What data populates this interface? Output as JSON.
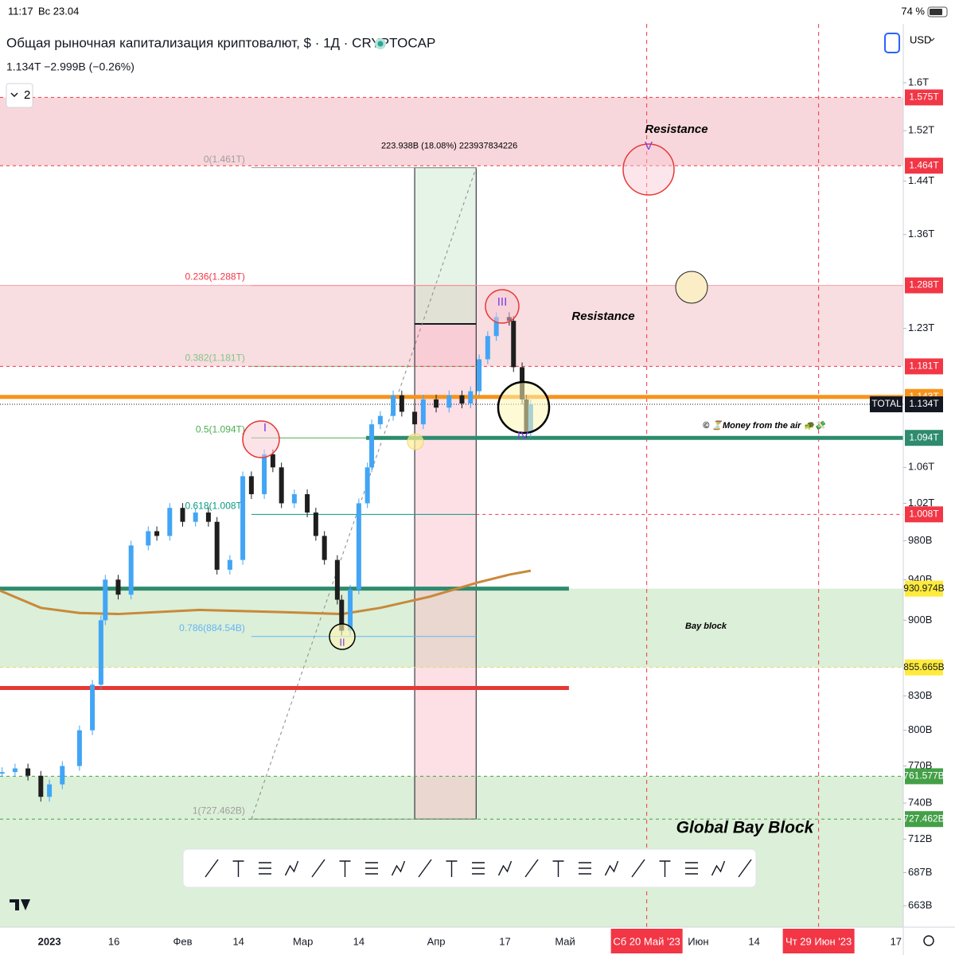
{
  "status_bar": {
    "time": "11:17",
    "date": "Вс 23.04",
    "battery": "74 %"
  },
  "chart_data": {
    "type": "candlestick",
    "title": "Общая рыночная капитализация криптовалют, $ · 1Д · CRYPTOCAP",
    "subtitle": "1.134T  −2.999B (−0.26%)",
    "interval_button": "2",
    "currency": "USD",
    "log_scale": true,
    "up_color": "#42a5f5",
    "down_color": "#1e1e1e",
    "x": [
      -11,
      -8,
      -5,
      -2,
      0,
      3,
      7,
      10,
      12,
      13,
      16,
      19,
      23,
      25,
      28,
      31,
      34,
      37,
      39,
      42,
      45,
      47,
      50,
      52,
      54,
      57,
      60,
      62,
      64,
      67,
      68,
      70,
      72,
      74,
      75,
      77,
      80,
      82,
      85,
      87,
      90,
      93,
      96,
      98,
      100,
      102,
      104,
      107,
      108,
      110,
      111,
      112
    ],
    "close": [
      765,
      768,
      762,
      745,
      755,
      770,
      800,
      840,
      900,
      940,
      925,
      975,
      990,
      985,
      1015,
      1000,
      1010,
      1000,
      950,
      960,
      1050,
      1030,
      1075,
      1060,
      1020,
      1030,
      1010,
      985,
      960,
      920,
      890,
      930,
      1020,
      1060,
      1110,
      1120,
      1145,
      1125,
      1110,
      1140,
      1130,
      1145,
      1135,
      1150,
      1190,
      1220,
      1245,
      1240,
      1180,
      1140,
      1100,
      1134
    ],
    "ma": {
      "x": [
        -11.5,
        -2,
        7,
        16,
        35,
        53,
        68,
        77,
        88.5,
        99.6,
        107,
        112
      ],
      "values": [
        929,
        912,
        907,
        906,
        910,
        908,
        906,
        912,
        923,
        937,
        945,
        949
      ],
      "color": "#c8893a"
    },
    "xlim": [
      -11.5,
      198.7
    ],
    "xticks": [
      {
        "value": 0,
        "label": "2023"
      },
      {
        "value": 15,
        "label": "16"
      },
      {
        "value": 31,
        "label": "Фев"
      },
      {
        "value": 44,
        "label": "14"
      },
      {
        "value": 59,
        "label": "Мар"
      },
      {
        "value": 72,
        "label": "14"
      },
      {
        "value": 90,
        "label": "Апр"
      },
      {
        "value": 106,
        "label": "17"
      },
      {
        "value": 120,
        "label": "Май"
      },
      {
        "value": 139,
        "label": "Сб 20 Май '23"
      },
      {
        "value": 151,
        "label": "Июн"
      },
      {
        "value": 164,
        "label": "14"
      },
      {
        "value": 179,
        "label": "Чт 29 Июн '23"
      },
      {
        "value": 197,
        "label": "17"
      }
    ],
    "highlight_dates": [
      139,
      179
    ],
    "ylim": [
      648,
      1704
    ],
    "yticks": [
      {
        "value": 1600,
        "label": "1.6T"
      },
      {
        "value": 1520,
        "label": "1.52T"
      },
      {
        "value": 1440,
        "label": "1.44T"
      },
      {
        "value": 1360,
        "label": "1.36T"
      },
      {
        "value": 1230,
        "label": "1.23T"
      },
      {
        "value": 1060,
        "label": "1.06T"
      },
      {
        "value": 1020,
        "label": "1.02T"
      },
      {
        "value": 980,
        "label": "980B"
      },
      {
        "value": 940,
        "label": "940B"
      },
      {
        "value": 900,
        "label": "900B"
      },
      {
        "value": 830,
        "label": "830B"
      },
      {
        "value": 800,
        "label": "800B"
      },
      {
        "value": 770,
        "label": "770B"
      },
      {
        "value": 740,
        "label": "740B"
      },
      {
        "value": 712,
        "label": "712B"
      },
      {
        "value": 687,
        "label": "687B"
      },
      {
        "value": 663,
        "label": "663B"
      }
    ],
    "zones": [
      {
        "from": 1575,
        "to": 1464,
        "color": "#f8d7dc"
      },
      {
        "from": 1288,
        "to": 1181,
        "color": "#f8dde1"
      },
      {
        "from": 930.974,
        "to": 855.665,
        "color": "#dcefd8"
      },
      {
        "from": 761.577,
        "color": "#dcefd8"
      }
    ],
    "levels": [
      {
        "value": 1575,
        "label": "1.575T",
        "color": "#f23645",
        "label_bg": "#f23645",
        "label_color": "#ffffff",
        "style": "dashed",
        "width": 1
      },
      {
        "value": 1464,
        "label": "1.464T",
        "color": "#f23645",
        "label_bg": "#f23645",
        "label_color": "#ffffff",
        "style": "dashed",
        "width": 1
      },
      {
        "value": 1288,
        "label": "1.288T",
        "color": "#f7a0aa",
        "label_bg": "#f23645",
        "label_color": "#ffffff",
        "style": "solid",
        "width": 1
      },
      {
        "value": 1181,
        "label": "1.181T",
        "color": "#f23645",
        "label_bg": "#f23645",
        "label_color": "#ffffff",
        "style": "dashed",
        "width": 1
      },
      {
        "value": 1143,
        "label": "1.143T",
        "color": "#f7931a",
        "label_bg": "#f7931a",
        "label_color": "#ffffff",
        "style": "solid",
        "width": 5
      },
      {
        "value": 1134,
        "label": "1.134T",
        "color": "#131722",
        "label_bg": "#131722",
        "label_color": "#ffffff",
        "style": "dotted",
        "width": 1,
        "tag": "TOTAL"
      },
      {
        "value": 1094,
        "label": "1.094T",
        "color": "#2e8b6e",
        "label_bg": "#2e8b6e",
        "label_color": "#ffffff",
        "style": "solid",
        "width": 5,
        "from": 73.7
      },
      {
        "value": 1008,
        "label": "1.008T",
        "color": "#f23645",
        "label_bg": "#f23645",
        "label_color": "#ffffff",
        "style": "dashed",
        "width": 1,
        "from": 99.3
      },
      {
        "value": 930.974,
        "label": "930.974B",
        "color": "#2e8b6e",
        "label_bg": "#ffeb3b",
        "label_color": "#131722",
        "style": "solid",
        "width": 5,
        "to": 120.9
      },
      {
        "value": 855.665,
        "label": "855.665B",
        "color": "#e6d96a",
        "label_bg": "#ffeb3b",
        "label_color": "#131722",
        "style": "dashed",
        "width": 1
      },
      {
        "value": 837,
        "color": "#e53935",
        "style": "solid",
        "width": 5,
        "to": 120.9
      },
      {
        "value": 761.577,
        "label": "761.577B",
        "color": "#43a047",
        "label_bg": "#43a047",
        "label_color": "#ffffff",
        "style": "dashed",
        "width": 1
      },
      {
        "value": 727.462,
        "label": "727.462B",
        "color": "#43a047",
        "label_bg": "#43a047",
        "label_color": "#ffffff",
        "style": "dashed",
        "width": 1
      }
    ],
    "fib_x": [
      47,
      99.3
    ],
    "fib": [
      {
        "value": 1461,
        "label": "0(1.461T)",
        "color": "#9e9e9e"
      },
      {
        "value": 1288,
        "label": "0.236(1.288T)",
        "color": "#f23645"
      },
      {
        "value": 1181,
        "label": "0.382(1.181T)",
        "color": "#81c784"
      },
      {
        "value": 1094,
        "label": "0.5(1.094T)",
        "color": "#4caf50"
      },
      {
        "value": 1008,
        "label": "0.618(1.008T)",
        "color": "#089981"
      },
      {
        "value": 884.54,
        "label": "0.786(884.54B)",
        "color": "#64b5f6"
      },
      {
        "value": 727.462,
        "label": "1(727.462B)",
        "color": "#9e9e9e"
      }
    ],
    "measure": {
      "label": "223.938B (18.08%) 223937834226",
      "x": [
        85,
        99.3
      ],
      "low": 727.462,
      "high": 1461,
      "split": 1236
    },
    "annotations": {
      "resistance_top": "Resistance",
      "resistance_mid": "Resistance",
      "bay_block": "Bay block",
      "global_bay_block": "Global Bay Block",
      "author": "© ⏳Money from the air 🐢💸"
    },
    "waves": {
      "i": "I",
      "ii": "II",
      "iii": "III",
      "iv": "IV",
      "v": "V"
    }
  }
}
